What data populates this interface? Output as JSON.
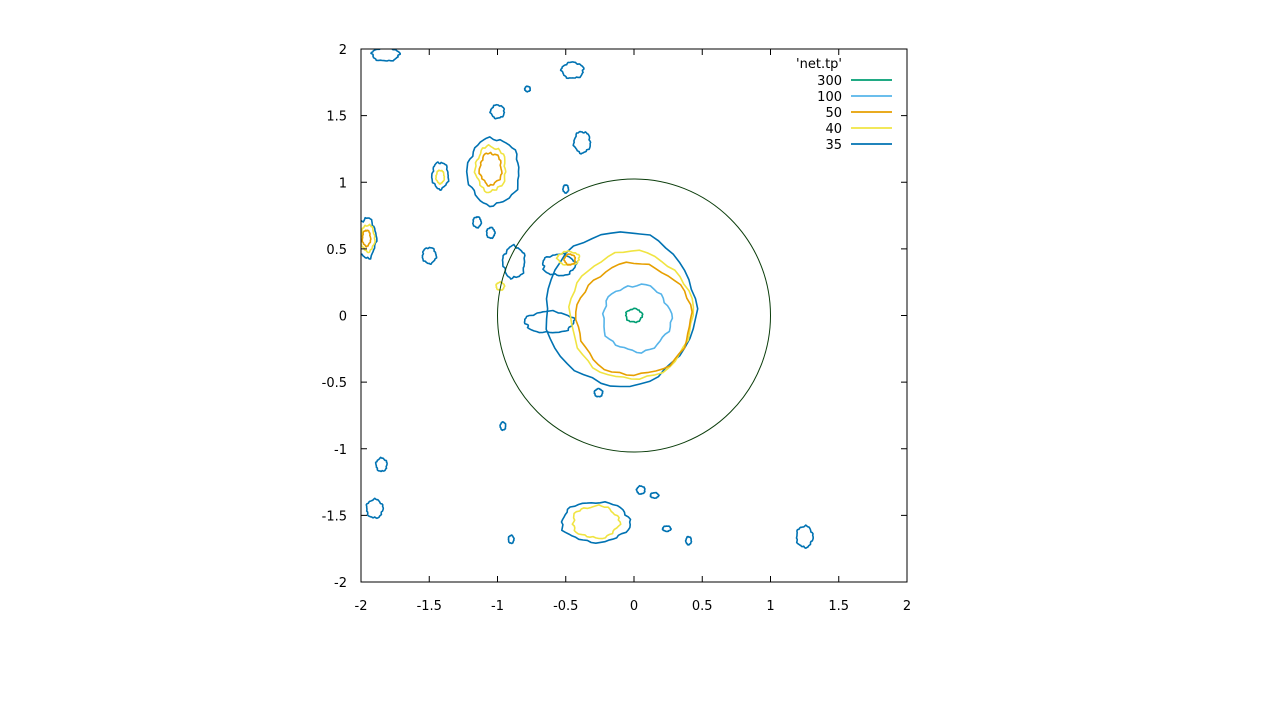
{
  "chart_data": {
    "type": "contour",
    "legend": {
      "title": "'net.tp'",
      "placement": "top-right",
      "entries": [
        {
          "label": "300",
          "color": "#009e73"
        },
        {
          "label": "100",
          "color": "#56b4e9"
        },
        {
          "label": "50",
          "color": "#e69f00"
        },
        {
          "label": "40",
          "color": "#f0e442"
        },
        {
          "label": "35",
          "color": "#0072b2"
        }
      ]
    },
    "xlim": [
      -2,
      2
    ],
    "ylim": [
      -2,
      2
    ],
    "x_ticks": [
      "-2",
      "-1.5",
      "-1",
      "-0.5",
      "0",
      "0.5",
      "1",
      "1.5",
      "2"
    ],
    "y_ticks": [
      "2",
      "1.5",
      "1",
      "0.5",
      "0",
      "-0.5",
      "-1",
      "-1.5",
      "-2"
    ],
    "grid": false,
    "reference_circle": {
      "center": [
        0,
        0
      ],
      "radius": 1,
      "color": "#0b3d0b"
    },
    "contours": [
      {
        "level": 300,
        "color": "#009e73",
        "shapes": [
          {
            "cx": 0.0,
            "cy": 0.0,
            "rx": 0.06,
            "ry": 0.05
          }
        ]
      },
      {
        "level": 100,
        "color": "#56b4e9",
        "shapes": [
          {
            "cx": 0.02,
            "cy": -0.02,
            "rx": 0.25,
            "ry": 0.25
          }
        ]
      },
      {
        "level": 50,
        "color": "#e69f00",
        "shapes": [
          {
            "cx": 0.0,
            "cy": -0.03,
            "rx": 0.42,
            "ry": 0.42
          },
          {
            "cx": -0.47,
            "cy": 0.42,
            "rx": 0.04,
            "ry": 0.04
          },
          {
            "cx": -1.05,
            "cy": 1.1,
            "rx": 0.08,
            "ry": 0.12
          },
          {
            "cx": -1.96,
            "cy": 0.58,
            "rx": 0.03,
            "ry": 0.06
          }
        ]
      },
      {
        "level": 40,
        "color": "#f0e442",
        "shapes": [
          {
            "cx": -0.02,
            "cy": 0.0,
            "rx": 0.45,
            "ry": 0.48
          },
          {
            "cx": -0.48,
            "cy": 0.43,
            "rx": 0.08,
            "ry": 0.05
          },
          {
            "cx": -1.05,
            "cy": 1.1,
            "rx": 0.11,
            "ry": 0.17
          },
          {
            "cx": -1.42,
            "cy": 1.04,
            "rx": 0.03,
            "ry": 0.05
          },
          {
            "cx": -1.95,
            "cy": 0.58,
            "rx": 0.05,
            "ry": 0.1
          },
          {
            "cx": -0.28,
            "cy": -1.55,
            "rx": 0.17,
            "ry": 0.12
          },
          {
            "cx": -0.98,
            "cy": 0.22,
            "rx": 0.03,
            "ry": 0.03
          }
        ]
      },
      {
        "level": 35,
        "color": "#0072b2",
        "shapes": [
          {
            "cx": -0.1,
            "cy": 0.05,
            "rx": 0.55,
            "ry": 0.58
          },
          {
            "cx": -0.55,
            "cy": 0.38,
            "rx": 0.12,
            "ry": 0.08
          },
          {
            "cx": -0.62,
            "cy": -0.05,
            "rx": 0.18,
            "ry": 0.08
          },
          {
            "cx": -0.88,
            "cy": 0.4,
            "rx": 0.08,
            "ry": 0.12
          },
          {
            "cx": -1.03,
            "cy": 1.08,
            "rx": 0.19,
            "ry": 0.25
          },
          {
            "cx": -1.42,
            "cy": 1.05,
            "rx": 0.06,
            "ry": 0.1
          },
          {
            "cx": -1.5,
            "cy": 0.45,
            "rx": 0.05,
            "ry": 0.06
          },
          {
            "cx": -1.96,
            "cy": 0.58,
            "rx": 0.07,
            "ry": 0.15
          },
          {
            "cx": -1.82,
            "cy": 1.96,
            "rx": 0.1,
            "ry": 0.05
          },
          {
            "cx": -0.45,
            "cy": 1.84,
            "rx": 0.08,
            "ry": 0.06
          },
          {
            "cx": -1.0,
            "cy": 1.53,
            "rx": 0.05,
            "ry": 0.05
          },
          {
            "cx": -0.38,
            "cy": 1.3,
            "rx": 0.06,
            "ry": 0.08
          },
          {
            "cx": -0.28,
            "cy": -1.55,
            "rx": 0.25,
            "ry": 0.15
          },
          {
            "cx": 1.25,
            "cy": -1.66,
            "rx": 0.06,
            "ry": 0.08
          },
          {
            "cx": -1.9,
            "cy": -1.45,
            "rx": 0.06,
            "ry": 0.07
          },
          {
            "cx": -1.85,
            "cy": -1.12,
            "rx": 0.04,
            "ry": 0.05
          },
          {
            "cx": 0.05,
            "cy": -1.31,
            "rx": 0.03,
            "ry": 0.03
          },
          {
            "cx": 0.4,
            "cy": -1.69,
            "rx": 0.02,
            "ry": 0.03
          },
          {
            "cx": 0.24,
            "cy": -1.6,
            "rx": 0.03,
            "ry": 0.02
          },
          {
            "cx": 0.15,
            "cy": -1.35,
            "rx": 0.03,
            "ry": 0.02
          },
          {
            "cx": -0.9,
            "cy": -1.68,
            "rx": 0.02,
            "ry": 0.03
          },
          {
            "cx": -0.26,
            "cy": -0.58,
            "rx": 0.03,
            "ry": 0.03
          },
          {
            "cx": -0.96,
            "cy": -0.83,
            "rx": 0.02,
            "ry": 0.03
          },
          {
            "cx": -0.78,
            "cy": 1.7,
            "rx": 0.02,
            "ry": 0.02
          },
          {
            "cx": -0.5,
            "cy": 0.95,
            "rx": 0.02,
            "ry": 0.03
          },
          {
            "cx": -1.15,
            "cy": 0.7,
            "rx": 0.03,
            "ry": 0.04
          },
          {
            "cx": -1.05,
            "cy": 0.62,
            "rx": 0.03,
            "ry": 0.04
          }
        ]
      }
    ]
  }
}
